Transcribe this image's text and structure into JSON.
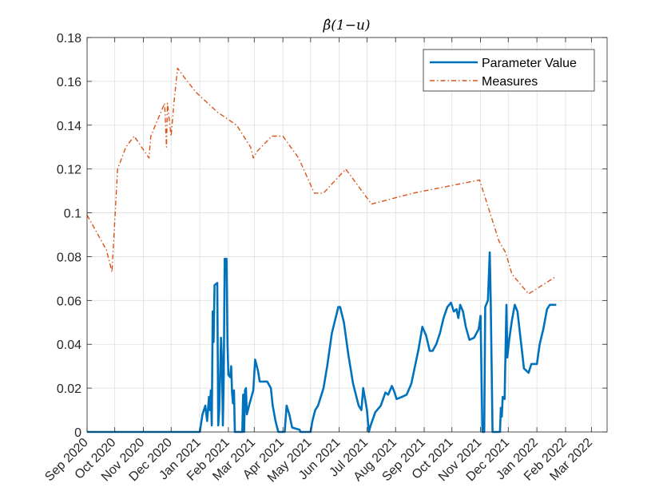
{
  "chart_data": {
    "type": "line",
    "title": "β̂(1−u)",
    "xlabel": "",
    "ylabel": "",
    "x_range": [
      "2020-09-01",
      "2022-03-18"
    ],
    "ylim": [
      0,
      0.18
    ],
    "yticks": [
      0,
      0.02,
      0.04,
      0.06,
      0.08,
      0.1,
      0.12,
      0.14,
      0.16,
      0.18
    ],
    "ytick_labels": [
      "0",
      "0.02",
      "0.04",
      "0.06",
      "0.08",
      "0.1",
      "0.12",
      "0.14",
      "0.16",
      "0.18"
    ],
    "xticks": [
      "2020-09-01",
      "2020-10-01",
      "2020-11-01",
      "2020-12-01",
      "2021-01-01",
      "2021-02-01",
      "2021-03-01",
      "2021-04-01",
      "2021-05-01",
      "2021-06-01",
      "2021-07-01",
      "2021-08-01",
      "2021-09-01",
      "2021-10-01",
      "2021-11-01",
      "2021-12-01",
      "2022-01-01",
      "2022-02-01",
      "2022-03-01"
    ],
    "xtick_labels": [
      "Sep 2020",
      "Oct 2020",
      "Nov 2020",
      "Dec 2020",
      "Jan 2021",
      "Feb 2021",
      "Mar 2021",
      "Apr 2021",
      "May 2021",
      "Jun 2021",
      "Jul 2021",
      "Aug 2021",
      "Sep 2021",
      "Oct 2021",
      "Nov 2021",
      "Dec 2021",
      "Jan 2022",
      "Feb 2022",
      "Mar 2022"
    ],
    "grid": true,
    "legend_position": "top-right",
    "series": [
      {
        "name": "Parameter Value",
        "color": "#0072BD",
        "style": "solid",
        "points": [
          [
            "2020-09-01",
            0
          ],
          [
            "2020-12-01",
            0
          ],
          [
            "2021-01-01",
            0
          ],
          [
            "2021-01-04",
            0.008
          ],
          [
            "2021-01-07",
            0.012
          ],
          [
            "2021-01-09",
            0.005
          ],
          [
            "2021-01-11",
            0.016
          ],
          [
            "2021-01-12",
            0.01
          ],
          [
            "2021-01-13",
            0.019
          ],
          [
            "2021-01-14",
            0.003
          ],
          [
            "2021-01-15",
            0.055
          ],
          [
            "2021-01-16",
            0.041
          ],
          [
            "2021-01-17",
            0.067
          ],
          [
            "2021-01-20",
            0.068
          ],
          [
            "2021-01-21",
            0.003
          ],
          [
            "2021-01-22",
            0.01
          ],
          [
            "2021-01-23",
            0.025
          ],
          [
            "2021-01-24",
            0.043
          ],
          [
            "2021-01-25",
            0.033
          ],
          [
            "2021-01-26",
            0.003
          ],
          [
            "2021-01-27",
            0.025
          ],
          [
            "2021-01-28",
            0.079
          ],
          [
            "2021-01-30",
            0.079
          ],
          [
            "2021-01-31",
            0.04
          ],
          [
            "2021-02-01",
            0.026
          ],
          [
            "2021-02-03",
            0.025
          ],
          [
            "2021-02-04",
            0.03
          ],
          [
            "2021-02-05",
            0.018
          ],
          [
            "2021-02-06",
            0.013
          ],
          [
            "2021-02-07",
            0.019
          ],
          [
            "2021-02-08",
            0
          ],
          [
            "2021-02-16",
            0
          ],
          [
            "2021-02-17",
            0.017
          ],
          [
            "2021-02-18",
            0
          ],
          [
            "2021-02-19",
            0.019
          ],
          [
            "2021-02-20",
            0.02
          ],
          [
            "2021-02-21",
            0.008
          ],
          [
            "2021-02-24",
            0.013
          ],
          [
            "2021-02-28",
            0.019
          ],
          [
            "2021-03-02",
            0.033
          ],
          [
            "2021-03-05",
            0.028
          ],
          [
            "2021-03-07",
            0.023
          ],
          [
            "2021-03-15",
            0.023
          ],
          [
            "2021-03-19",
            0.02
          ],
          [
            "2021-03-21",
            0.012
          ],
          [
            "2021-03-24",
            0.005
          ],
          [
            "2021-03-27",
            0
          ],
          [
            "2021-04-03",
            0
          ],
          [
            "2021-04-05",
            0.012
          ],
          [
            "2021-04-08",
            0.008
          ],
          [
            "2021-04-11",
            0.002
          ],
          [
            "2021-04-19",
            0.001
          ],
          [
            "2021-04-20",
            0
          ],
          [
            "2021-05-01",
            0
          ],
          [
            "2021-05-03",
            0.005
          ],
          [
            "2021-05-06",
            0.01
          ],
          [
            "2021-05-09",
            0.012
          ],
          [
            "2021-05-15",
            0.02
          ],
          [
            "2021-05-19",
            0.03
          ],
          [
            "2021-05-24",
            0.045
          ],
          [
            "2021-05-31",
            0.057
          ],
          [
            "2021-06-02",
            0.057
          ],
          [
            "2021-06-06",
            0.05
          ],
          [
            "2021-06-11",
            0.035
          ],
          [
            "2021-06-16",
            0.022
          ],
          [
            "2021-06-22",
            0.012
          ],
          [
            "2021-06-25",
            0.01
          ],
          [
            "2021-06-27",
            0.02
          ],
          [
            "2021-07-01",
            0.01
          ],
          [
            "2021-07-03",
            0
          ],
          [
            "2021-07-05",
            0.003
          ],
          [
            "2021-07-10",
            0.009
          ],
          [
            "2021-07-16",
            0.012
          ],
          [
            "2021-07-21",
            0.018
          ],
          [
            "2021-07-24",
            0.017
          ],
          [
            "2021-07-28",
            0.021
          ],
          [
            "2021-07-31",
            0.018
          ],
          [
            "2021-08-02",
            0.015
          ],
          [
            "2021-08-08",
            0.016
          ],
          [
            "2021-08-13",
            0.017
          ],
          [
            "2021-08-18",
            0.022
          ],
          [
            "2021-08-22",
            0.03
          ],
          [
            "2021-08-26",
            0.038
          ],
          [
            "2021-08-30",
            0.048
          ],
          [
            "2021-09-03",
            0.044
          ],
          [
            "2021-09-07",
            0.037
          ],
          [
            "2021-09-10",
            0.037
          ],
          [
            "2021-09-14",
            0.04
          ],
          [
            "2021-09-18",
            0.045
          ],
          [
            "2021-09-22",
            0.052
          ],
          [
            "2021-09-26",
            0.057
          ],
          [
            "2021-09-30",
            0.059
          ],
          [
            "2021-10-03",
            0.055
          ],
          [
            "2021-10-06",
            0.056
          ],
          [
            "2021-10-08",
            0.052
          ],
          [
            "2021-10-10",
            0.058
          ],
          [
            "2021-10-13",
            0.055
          ],
          [
            "2021-10-16",
            0.048
          ],
          [
            "2021-10-20",
            0.042
          ],
          [
            "2021-10-25",
            0.043
          ],
          [
            "2021-10-30",
            0.047
          ],
          [
            "2021-11-01",
            0.053
          ],
          [
            "2021-11-03",
            0
          ],
          [
            "2021-11-05",
            0
          ],
          [
            "2021-11-06",
            0.057
          ],
          [
            "2021-11-09",
            0.06
          ],
          [
            "2021-11-11",
            0.082
          ],
          [
            "2021-11-12",
            0.06
          ],
          [
            "2021-11-14",
            0
          ],
          [
            "2021-11-22",
            0
          ],
          [
            "2021-11-23",
            0.011
          ],
          [
            "2021-11-24",
            0.007
          ],
          [
            "2021-11-25",
            0.016
          ],
          [
            "2021-11-27",
            0.015
          ],
          [
            "2021-11-29",
            0.058
          ],
          [
            "2021-11-30",
            0.034
          ],
          [
            "2021-12-02",
            0.042
          ],
          [
            "2021-12-05",
            0.051
          ],
          [
            "2021-12-08",
            0.058
          ],
          [
            "2021-12-11",
            0.055
          ],
          [
            "2021-12-15",
            0.04
          ],
          [
            "2021-12-18",
            0.029
          ],
          [
            "2021-12-23",
            0.027
          ],
          [
            "2021-12-26",
            0.031
          ],
          [
            "2022-01-01",
            0.031
          ],
          [
            "2022-01-04",
            0.04
          ],
          [
            "2022-01-08",
            0.047
          ],
          [
            "2022-01-12",
            0.056
          ],
          [
            "2022-01-15",
            0.058
          ],
          [
            "2022-01-22",
            0.058
          ]
        ]
      },
      {
        "name": "Measures",
        "color": "#D95319",
        "style": "dash-dot",
        "points": [
          [
            "2020-09-01",
            0.099
          ],
          [
            "2020-09-22",
            0.083
          ],
          [
            "2020-09-28",
            0.073
          ],
          [
            "2020-10-04",
            0.12
          ],
          [
            "2020-10-13",
            0.13
          ],
          [
            "2020-10-22",
            0.135
          ],
          [
            "2020-11-07",
            0.125
          ],
          [
            "2020-11-09",
            0.135
          ],
          [
            "2020-11-24",
            0.15
          ],
          [
            "2020-11-26",
            0.13
          ],
          [
            "2020-11-27",
            0.15
          ],
          [
            "2020-12-01",
            0.135
          ],
          [
            "2020-12-04",
            0.15
          ],
          [
            "2020-12-08",
            0.166
          ],
          [
            "2020-12-15",
            0.162
          ],
          [
            "2020-12-28",
            0.155
          ],
          [
            "2021-01-20",
            0.146
          ],
          [
            "2021-02-10",
            0.14
          ],
          [
            "2021-02-25",
            0.13
          ],
          [
            "2021-02-28",
            0.125
          ],
          [
            "2021-03-04",
            0.128
          ],
          [
            "2021-03-20",
            0.135
          ],
          [
            "2021-04-01",
            0.135
          ],
          [
            "2021-04-18",
            0.125
          ],
          [
            "2021-05-05",
            0.109
          ],
          [
            "2021-05-15",
            0.109
          ],
          [
            "2021-06-08",
            0.12
          ],
          [
            "2021-07-06",
            0.104
          ],
          [
            "2021-08-20",
            0.109
          ],
          [
            "2021-10-31",
            0.115
          ],
          [
            "2021-11-21",
            0.087
          ],
          [
            "2021-11-28",
            0.082
          ],
          [
            "2021-12-05",
            0.072
          ],
          [
            "2021-12-23",
            0.063
          ],
          [
            "2022-01-22",
            0.071
          ]
        ]
      }
    ]
  }
}
